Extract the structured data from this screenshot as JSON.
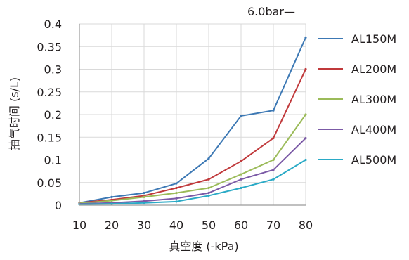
{
  "chart_data": {
    "type": "line",
    "title": "",
    "header_note": "6.0bar—",
    "xlabel": "真空度 (-kPa)",
    "ylabel": "抽气时间 (s/L)",
    "x": [
      10,
      20,
      30,
      40,
      50,
      60,
      70,
      80
    ],
    "x_tick_labels": [
      "10",
      "20",
      "30",
      "40",
      "50",
      "60",
      "70",
      "80"
    ],
    "y_ticks": [
      0,
      0.05,
      0.1,
      0.15,
      0.2,
      0.25,
      0.3,
      0.35,
      0.4
    ],
    "y_tick_labels": [
      "0",
      "0.05",
      "0.1",
      "0.15",
      "0.2",
      "0.25",
      "0.3",
      "0.35",
      "0.4"
    ],
    "xlim": [
      10,
      80
    ],
    "ylim": [
      0,
      0.4
    ],
    "grid": true,
    "legend_position": "right",
    "series": [
      {
        "name": "AL150M",
        "color": "#3c78b4",
        "values": [
          0.005,
          0.018,
          0.027,
          0.048,
          0.103,
          0.197,
          0.209,
          0.37
        ]
      },
      {
        "name": "AL200M",
        "color": "#c0393b",
        "values": [
          0.005,
          0.012,
          0.021,
          0.038,
          0.057,
          0.097,
          0.148,
          0.3
        ]
      },
      {
        "name": "AL300M",
        "color": "#9bbb59",
        "values": [
          0.004,
          0.01,
          0.018,
          0.027,
          0.038,
          0.068,
          0.1,
          0.2
        ]
      },
      {
        "name": "AL400M",
        "color": "#7b5aa6",
        "values": [
          0.003,
          0.005,
          0.009,
          0.015,
          0.027,
          0.057,
          0.078,
          0.148
        ]
      },
      {
        "name": "AL500M",
        "color": "#2aaac6",
        "values": [
          0.002,
          0.003,
          0.005,
          0.008,
          0.021,
          0.038,
          0.057,
          0.1
        ]
      }
    ]
  }
}
